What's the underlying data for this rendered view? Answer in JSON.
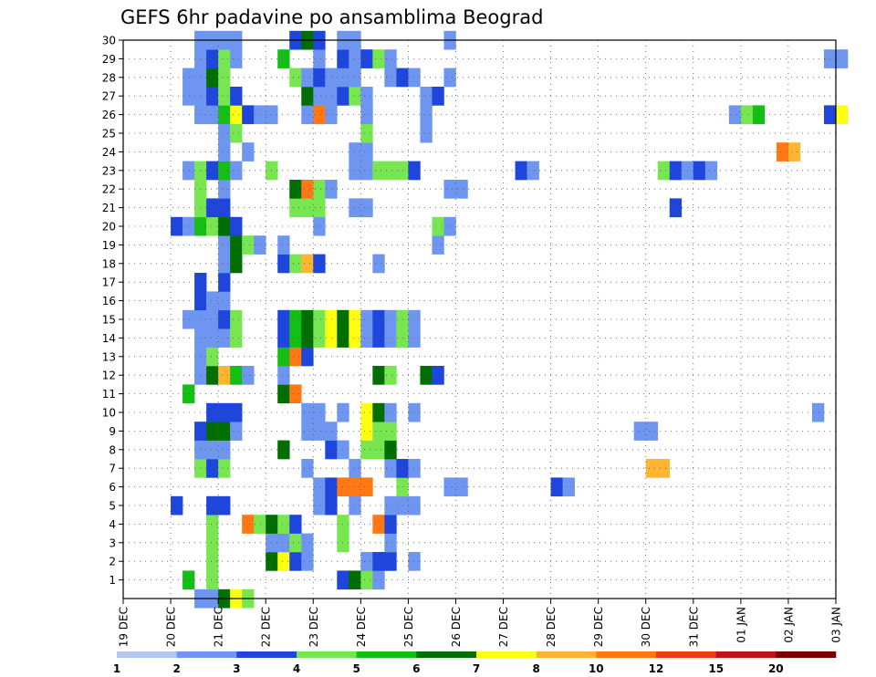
{
  "chart_data": {
    "type": "heatmap",
    "title": "GEFS 6hr padavine po ansamblima Beograd",
    "xlabel": "",
    "ylabel": "",
    "x_tick_labels": [
      "19 DEC",
      "20 DEC",
      "21 DEC",
      "22 DEC",
      "23 DEC",
      "24 DEC",
      "25 DEC",
      "26 DEC",
      "27 DEC",
      "28 DEC",
      "29 DEC",
      "30 DEC",
      "31 DEC",
      "01 JAN",
      "02 JAN",
      "03 JAN"
    ],
    "y_tick_labels": [
      "1",
      "2",
      "3",
      "4",
      "5",
      "6",
      "7",
      "8",
      "9",
      "10",
      "11",
      "12",
      "13",
      "14",
      "15",
      "16",
      "17",
      "18",
      "19",
      "20",
      "21",
      "22",
      "23",
      "24",
      "25",
      "26",
      "27",
      "28",
      "29",
      "30"
    ],
    "time_step_hours": 6,
    "x_range": [
      "19 DEC 00Z",
      "03 JAN 00Z"
    ],
    "y_range": [
      0,
      30
    ],
    "grid": true,
    "colorbar": {
      "bounds": [
        "1",
        "2",
        "3",
        "4",
        "5",
        "6",
        "7",
        "8",
        "10",
        "12",
        "15",
        "20"
      ],
      "colors": [
        "#b4c8f5",
        "#6e96f0",
        "#1e46dc",
        "#78e650",
        "#14be14",
        "#006e00",
        "#ffff14",
        "#ffb432",
        "#ff7814",
        "#f03c14",
        "#be1414",
        "#780000"
      ]
    },
    "cells": [
      [
        0,
        6,
        1
      ],
      [
        0,
        7,
        1
      ],
      [
        0,
        8,
        5
      ],
      [
        0,
        9,
        6
      ],
      [
        0,
        10,
        3
      ],
      [
        1,
        5,
        4
      ],
      [
        1,
        7,
        3
      ],
      [
        1,
        18,
        2
      ],
      [
        1,
        19,
        5
      ],
      [
        1,
        20,
        3
      ],
      [
        1,
        21,
        1
      ],
      [
        2,
        7,
        3
      ],
      [
        2,
        12,
        5
      ],
      [
        2,
        13,
        6
      ],
      [
        2,
        14,
        2
      ],
      [
        2,
        15,
        1
      ],
      [
        2,
        20,
        1
      ],
      [
        2,
        21,
        2
      ],
      [
        2,
        22,
        2
      ],
      [
        2,
        24,
        1
      ],
      [
        3,
        7,
        3
      ],
      [
        3,
        12,
        1
      ],
      [
        3,
        13,
        1
      ],
      [
        3,
        14,
        3
      ],
      [
        3,
        15,
        1
      ],
      [
        3,
        18,
        3
      ],
      [
        3,
        22,
        1
      ],
      [
        4,
        7,
        3
      ],
      [
        4,
        10,
        8
      ],
      [
        4,
        11,
        3
      ],
      [
        4,
        12,
        5
      ],
      [
        4,
        13,
        3
      ],
      [
        4,
        14,
        2
      ],
      [
        4,
        18,
        3
      ],
      [
        4,
        21,
        8
      ],
      [
        4,
        22,
        2
      ],
      [
        5,
        4,
        2
      ],
      [
        5,
        7,
        2
      ],
      [
        5,
        8,
        2
      ],
      [
        5,
        16,
        1
      ],
      [
        5,
        17,
        2
      ],
      [
        5,
        19,
        1
      ],
      [
        5,
        22,
        1
      ],
      [
        5,
        23,
        1
      ],
      [
        5,
        24,
        1
      ],
      [
        6,
        16,
        1
      ],
      [
        6,
        17,
        2
      ],
      [
        6,
        18,
        8
      ],
      [
        6,
        19,
        8
      ],
      [
        6,
        20,
        8
      ],
      [
        6,
        23,
        3
      ],
      [
        6,
        27,
        1
      ],
      [
        6,
        28,
        1
      ],
      [
        6,
        36,
        2
      ],
      [
        6,
        37,
        1
      ],
      [
        7,
        6,
        3
      ],
      [
        7,
        7,
        2
      ],
      [
        7,
        8,
        3
      ],
      [
        7,
        15,
        1
      ],
      [
        7,
        19,
        1
      ],
      [
        7,
        22,
        1
      ],
      [
        7,
        23,
        2
      ],
      [
        7,
        24,
        1
      ],
      [
        7,
        44,
        7
      ],
      [
        7,
        45,
        7
      ],
      [
        8,
        6,
        1
      ],
      [
        8,
        7,
        1
      ],
      [
        8,
        8,
        1
      ],
      [
        8,
        13,
        5
      ],
      [
        8,
        17,
        2
      ],
      [
        8,
        18,
        1
      ],
      [
        8,
        20,
        3
      ],
      [
        8,
        21,
        3
      ],
      [
        8,
        22,
        5
      ],
      [
        9,
        6,
        2
      ],
      [
        9,
        7,
        5
      ],
      [
        9,
        8,
        5
      ],
      [
        9,
        9,
        1
      ],
      [
        9,
        15,
        1
      ],
      [
        9,
        16,
        1
      ],
      [
        9,
        17,
        1
      ],
      [
        9,
        20,
        6
      ],
      [
        9,
        21,
        3
      ],
      [
        9,
        22,
        3
      ],
      [
        9,
        43,
        1
      ],
      [
        9,
        44,
        1
      ],
      [
        10,
        7,
        2
      ],
      [
        10,
        8,
        2
      ],
      [
        10,
        9,
        2
      ],
      [
        10,
        15,
        1
      ],
      [
        10,
        16,
        1
      ],
      [
        10,
        18,
        1
      ],
      [
        10,
        20,
        6
      ],
      [
        10,
        21,
        5
      ],
      [
        10,
        22,
        1
      ],
      [
        10,
        24,
        1
      ],
      [
        10,
        58,
        1
      ],
      [
        11,
        5,
        4
      ],
      [
        11,
        13,
        5
      ],
      [
        11,
        14,
        8
      ],
      [
        12,
        6,
        1
      ],
      [
        12,
        7,
        5
      ],
      [
        12,
        8,
        7
      ],
      [
        12,
        9,
        4
      ],
      [
        12,
        10,
        1
      ],
      [
        12,
        13,
        1
      ],
      [
        12,
        21,
        5
      ],
      [
        12,
        22,
        3
      ],
      [
        12,
        25,
        5
      ],
      [
        12,
        26,
        2
      ],
      [
        13,
        6,
        1
      ],
      [
        13,
        7,
        3
      ],
      [
        13,
        13,
        4
      ],
      [
        13,
        14,
        8
      ],
      [
        13,
        15,
        2
      ],
      [
        14,
        6,
        1
      ],
      [
        14,
        7,
        1
      ],
      [
        14,
        8,
        1
      ],
      [
        14,
        9,
        3
      ],
      [
        14,
        13,
        2
      ],
      [
        14,
        14,
        4
      ],
      [
        14,
        15,
        5
      ],
      [
        14,
        16,
        3
      ],
      [
        14,
        17,
        6
      ],
      [
        14,
        18,
        5
      ],
      [
        14,
        19,
        6
      ],
      [
        14,
        20,
        1
      ],
      [
        14,
        21,
        2
      ],
      [
        14,
        22,
        1
      ],
      [
        14,
        23,
        3
      ],
      [
        14,
        24,
        1
      ],
      [
        15,
        5,
        1
      ],
      [
        15,
        6,
        1
      ],
      [
        15,
        7,
        1
      ],
      [
        15,
        8,
        2
      ],
      [
        15,
        9,
        3
      ],
      [
        15,
        13,
        2
      ],
      [
        15,
        14,
        4
      ],
      [
        15,
        15,
        5
      ],
      [
        15,
        16,
        3
      ],
      [
        15,
        17,
        6
      ],
      [
        15,
        18,
        5
      ],
      [
        15,
        19,
        6
      ],
      [
        15,
        20,
        1
      ],
      [
        15,
        21,
        2
      ],
      [
        15,
        22,
        1
      ],
      [
        15,
        23,
        3
      ],
      [
        15,
        24,
        1
      ],
      [
        16,
        6,
        2
      ],
      [
        16,
        7,
        1
      ],
      [
        16,
        8,
        1
      ],
      [
        17,
        6,
        2
      ],
      [
        17,
        8,
        2
      ],
      [
        18,
        8,
        1
      ],
      [
        18,
        9,
        5
      ],
      [
        18,
        13,
        2
      ],
      [
        18,
        14,
        3
      ],
      [
        18,
        15,
        7
      ],
      [
        18,
        16,
        2
      ],
      [
        18,
        21,
        1
      ],
      [
        19,
        8,
        1
      ],
      [
        19,
        9,
        5
      ],
      [
        19,
        10,
        3
      ],
      [
        19,
        11,
        1
      ],
      [
        19,
        13,
        1
      ],
      [
        19,
        26,
        1
      ],
      [
        20,
        4,
        2
      ],
      [
        20,
        5,
        1
      ],
      [
        20,
        6,
        4
      ],
      [
        20,
        7,
        3
      ],
      [
        20,
        8,
        5
      ],
      [
        20,
        9,
        2
      ],
      [
        20,
        16,
        1
      ],
      [
        20,
        26,
        3
      ],
      [
        20,
        27,
        1
      ],
      [
        21,
        6,
        3
      ],
      [
        21,
        7,
        2
      ],
      [
        21,
        8,
        2
      ],
      [
        21,
        14,
        3
      ],
      [
        21,
        15,
        3
      ],
      [
        21,
        16,
        3
      ],
      [
        21,
        19,
        1
      ],
      [
        21,
        20,
        1
      ],
      [
        21,
        46,
        2
      ],
      [
        22,
        6,
        3
      ],
      [
        22,
        8,
        1
      ],
      [
        22,
        14,
        5
      ],
      [
        22,
        15,
        8
      ],
      [
        22,
        16,
        3
      ],
      [
        22,
        17,
        1
      ],
      [
        22,
        27,
        1
      ],
      [
        22,
        28,
        1
      ],
      [
        23,
        5,
        1
      ],
      [
        23,
        6,
        3
      ],
      [
        23,
        7,
        2
      ],
      [
        23,
        8,
        4
      ],
      [
        23,
        9,
        1
      ],
      [
        23,
        12,
        3
      ],
      [
        23,
        19,
        1
      ],
      [
        23,
        20,
        1
      ],
      [
        23,
        21,
        3
      ],
      [
        23,
        22,
        3
      ],
      [
        23,
        23,
        3
      ],
      [
        23,
        24,
        2
      ],
      [
        23,
        33,
        2
      ],
      [
        23,
        34,
        1
      ],
      [
        23,
        45,
        3
      ],
      [
        23,
        46,
        2
      ],
      [
        23,
        47,
        1
      ],
      [
        23,
        48,
        2
      ],
      [
        23,
        49,
        1
      ],
      [
        24,
        8,
        1
      ],
      [
        24,
        10,
        1
      ],
      [
        24,
        19,
        1
      ],
      [
        24,
        20,
        1
      ],
      [
        24,
        55,
        8
      ],
      [
        24,
        56,
        7
      ],
      [
        25,
        8,
        1
      ],
      [
        25,
        9,
        3
      ],
      [
        25,
        20,
        3
      ],
      [
        25,
        25,
        1
      ],
      [
        26,
        6,
        1
      ],
      [
        26,
        7,
        1
      ],
      [
        26,
        8,
        4
      ],
      [
        26,
        9,
        6
      ],
      [
        26,
        10,
        2
      ],
      [
        26,
        11,
        1
      ],
      [
        26,
        12,
        1
      ],
      [
        26,
        15,
        1
      ],
      [
        26,
        16,
        8
      ],
      [
        26,
        17,
        1
      ],
      [
        26,
        20,
        1
      ],
      [
        26,
        25,
        1
      ],
      [
        26,
        51,
        1
      ],
      [
        26,
        52,
        3
      ],
      [
        26,
        53,
        4
      ],
      [
        26,
        59,
        2
      ],
      [
        26,
        60,
        6
      ],
      [
        27,
        5,
        1
      ],
      [
        27,
        6,
        1
      ],
      [
        27,
        7,
        2
      ],
      [
        27,
        8,
        3
      ],
      [
        27,
        9,
        2
      ],
      [
        27,
        15,
        5
      ],
      [
        27,
        16,
        1
      ],
      [
        27,
        17,
        1
      ],
      [
        27,
        18,
        2
      ],
      [
        27,
        19,
        3
      ],
      [
        27,
        20,
        1
      ],
      [
        27,
        25,
        1
      ],
      [
        27,
        26,
        2
      ],
      [
        28,
        5,
        1
      ],
      [
        28,
        6,
        1
      ],
      [
        28,
        7,
        5
      ],
      [
        28,
        8,
        3
      ],
      [
        28,
        14,
        3
      ],
      [
        28,
        15,
        1
      ],
      [
        28,
        16,
        2
      ],
      [
        28,
        17,
        1
      ],
      [
        28,
        18,
        1
      ],
      [
        28,
        19,
        1
      ],
      [
        28,
        22,
        1
      ],
      [
        28,
        23,
        2
      ],
      [
        28,
        24,
        1
      ],
      [
        28,
        27,
        1
      ],
      [
        29,
        6,
        1
      ],
      [
        29,
        7,
        2
      ],
      [
        29,
        8,
        3
      ],
      [
        29,
        9,
        1
      ],
      [
        29,
        13,
        4
      ],
      [
        29,
        16,
        1
      ],
      [
        29,
        18,
        2
      ],
      [
        29,
        19,
        1
      ],
      [
        29,
        20,
        2
      ],
      [
        29,
        21,
        3
      ],
      [
        29,
        22,
        1
      ],
      [
        29,
        59,
        1
      ],
      [
        29,
        60,
        1
      ],
      [
        30,
        6,
        1
      ],
      [
        30,
        7,
        1
      ],
      [
        30,
        8,
        1
      ],
      [
        30,
        9,
        1
      ],
      [
        30,
        14,
        2
      ],
      [
        30,
        15,
        5
      ],
      [
        30,
        16,
        2
      ],
      [
        30,
        18,
        1
      ],
      [
        30,
        19,
        1
      ],
      [
        30,
        27,
        1
      ]
    ]
  }
}
